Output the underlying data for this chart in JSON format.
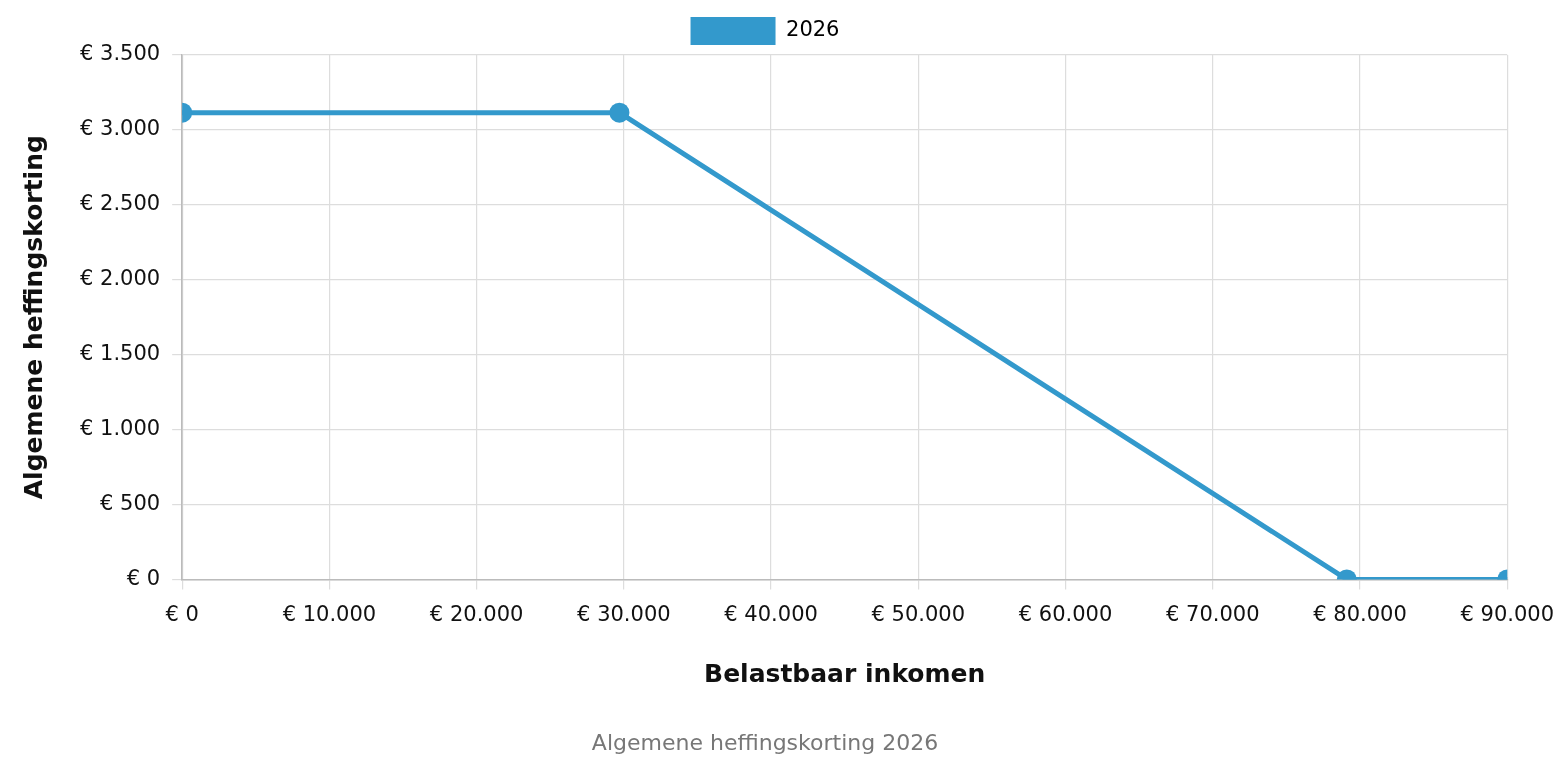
{
  "chart_data": {
    "type": "line",
    "title": "Algemene heffingskorting 2026",
    "xlabel": "Belastbaar inkomen",
    "ylabel": "Algemene heffingskorting",
    "x": [
      0,
      29700,
      79100,
      90000
    ],
    "series": [
      {
        "name": "2026",
        "color": "#3399cc",
        "values": [
          3115,
          3115,
          0,
          0
        ]
      }
    ],
    "xlim": [
      0,
      90000
    ],
    "xticks": [
      {
        "value": 0,
        "label": "€ 0"
      },
      {
        "value": 10000,
        "label": "€ 10.000"
      },
      {
        "value": 20000,
        "label": "€ 20.000"
      },
      {
        "value": 30000,
        "label": "€ 30.000"
      },
      {
        "value": 40000,
        "label": "€ 40.000"
      },
      {
        "value": 50000,
        "label": "€ 50.000"
      },
      {
        "value": 60000,
        "label": "€ 60.000"
      },
      {
        "value": 70000,
        "label": "€ 70.000"
      },
      {
        "value": 80000,
        "label": "€ 80.000"
      },
      {
        "value": 90000,
        "label": "€ 90.000"
      }
    ],
    "ylim": [
      0,
      3500
    ],
    "yticks": [
      {
        "value": 0,
        "label": "€ 0"
      },
      {
        "value": 500,
        "label": "€ 500"
      },
      {
        "value": 1000,
        "label": "€ 1.000"
      },
      {
        "value": 1500,
        "label": "€ 1.500"
      },
      {
        "value": 2000,
        "label": "€ 2.000"
      },
      {
        "value": 2500,
        "label": "€ 2.500"
      },
      {
        "value": 3000,
        "label": "€ 3.000"
      },
      {
        "value": 3500,
        "label": "€ 3.500"
      }
    ],
    "grid": true,
    "legend": "top",
    "marker": "circle",
    "line_style": "solid"
  }
}
